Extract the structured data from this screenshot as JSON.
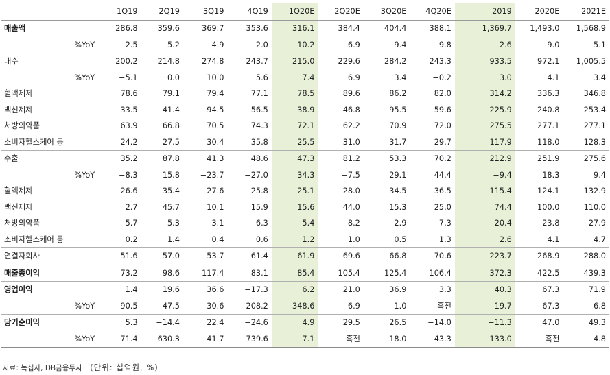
{
  "columns": [
    "1Q19",
    "2Q19",
    "3Q19",
    "4Q19",
    "1Q20E",
    "2Q20E",
    "3Q20E",
    "4Q20E",
    "2019",
    "2020E",
    "2021E"
  ],
  "rows": [
    {
      "label": "매출액",
      "bold": true,
      "pct": false,
      "sep": "none",
      "values": [
        "286.8",
        "359.6",
        "369.7",
        "353.6",
        "316.1",
        "384.4",
        "404.4",
        "388.1",
        "1,369.7",
        "1,493.0",
        "1,568.9"
      ]
    },
    {
      "label": "%YoY",
      "bold": false,
      "pct": true,
      "sep": "none",
      "values": [
        "−2.5",
        "5.2",
        "4.9",
        "2.0",
        "10.2",
        "6.9",
        "9.4",
        "9.8",
        "2.6",
        "9.0",
        "5.1"
      ]
    },
    {
      "label": "내수",
      "bold": false,
      "pct": false,
      "sep": "line",
      "values": [
        "200.2",
        "214.8",
        "274.8",
        "243.7",
        "215.0",
        "229.6",
        "284.2",
        "243.3",
        "933.5",
        "972.1",
        "1,005.5"
      ]
    },
    {
      "label": "%YoY",
      "bold": false,
      "pct": true,
      "sep": "none",
      "values": [
        "−5.1",
        "0.0",
        "10.0",
        "5.6",
        "7.4",
        "6.9",
        "3.4",
        "−0.2",
        "3.0",
        "4.1",
        "3.4"
      ]
    },
    {
      "label": "혈액제제",
      "bold": false,
      "pct": false,
      "sep": "none",
      "values": [
        "78.6",
        "79.1",
        "79.4",
        "77.1",
        "78.5",
        "89.6",
        "86.2",
        "82.0",
        "314.2",
        "336.3",
        "346.8"
      ]
    },
    {
      "label": "백신제제",
      "bold": false,
      "pct": false,
      "sep": "none",
      "values": [
        "33.5",
        "41.4",
        "94.5",
        "56.5",
        "38.9",
        "46.8",
        "95.5",
        "59.6",
        "225.9",
        "240.8",
        "253.4"
      ]
    },
    {
      "label": "처방의약품",
      "bold": false,
      "pct": false,
      "sep": "none",
      "values": [
        "63.9",
        "66.8",
        "70.5",
        "74.3",
        "72.1",
        "62.2",
        "70.9",
        "72.0",
        "275.5",
        "277.1",
        "277.1"
      ]
    },
    {
      "label": "소비자헬스케어 등",
      "bold": false,
      "pct": false,
      "sep": "none",
      "values": [
        "24.2",
        "27.5",
        "30.4",
        "35.8",
        "25.5",
        "31.0",
        "31.7",
        "29.7",
        "117.9",
        "118.0",
        "128.3"
      ]
    },
    {
      "label": "수출",
      "bold": false,
      "pct": false,
      "sep": "line",
      "values": [
        "35.2",
        "87.8",
        "41.3",
        "48.6",
        "47.3",
        "81.2",
        "53.3",
        "70.2",
        "212.9",
        "251.9",
        "275.6"
      ]
    },
    {
      "label": "%YoY",
      "bold": false,
      "pct": true,
      "sep": "none",
      "values": [
        "−8.3",
        "15.8",
        "−23.7",
        "−27.0",
        "34.3",
        "−7.5",
        "29.1",
        "44.4",
        "−9.4",
        "18.3",
        "9.4"
      ]
    },
    {
      "label": "혈액제제",
      "bold": false,
      "pct": false,
      "sep": "none",
      "values": [
        "26.6",
        "35.4",
        "27.6",
        "25.8",
        "25.1",
        "28.0",
        "34.5",
        "36.5",
        "115.4",
        "124.1",
        "132.9"
      ]
    },
    {
      "label": "백신제제",
      "bold": false,
      "pct": false,
      "sep": "none",
      "values": [
        "2.7",
        "45.7",
        "10.1",
        "15.9",
        "15.6",
        "44.0",
        "15.3",
        "25.0",
        "74.4",
        "100.0",
        "110.0"
      ]
    },
    {
      "label": "처방의약품",
      "bold": false,
      "pct": false,
      "sep": "none",
      "values": [
        "5.7",
        "5.3",
        "3.1",
        "6.3",
        "5.4",
        "8.2",
        "2.9",
        "7.3",
        "20.4",
        "23.8",
        "27.9"
      ]
    },
    {
      "label": "소비자헬스케어 등",
      "bold": false,
      "pct": false,
      "sep": "none",
      "values": [
        "0.2",
        "1.4",
        "0.4",
        "0.6",
        "1.2",
        "1.0",
        "0.5",
        "1.3",
        "2.6",
        "4.1",
        "4.7"
      ]
    },
    {
      "label": "연결자회사",
      "bold": false,
      "pct": false,
      "sep": "line",
      "values": [
        "51.6",
        "57.0",
        "53.7",
        "61.4",
        "61.9",
        "69.6",
        "66.8",
        "70.6",
        "223.7",
        "268.9",
        "288.0"
      ]
    },
    {
      "label": "매출총이익",
      "bold": true,
      "pct": false,
      "sep": "thick",
      "values": [
        "73.2",
        "98.6",
        "117.4",
        "83.1",
        "85.4",
        "105.4",
        "125.4",
        "106.4",
        "372.3",
        "422.5",
        "439.3"
      ]
    },
    {
      "label": "영업이익",
      "bold": true,
      "pct": false,
      "sep": "line",
      "values": [
        "1.4",
        "19.6",
        "36.6",
        "−17.3",
        "6.2",
        "21.0",
        "36.9",
        "3.3",
        "40.3",
        "67.3",
        "71.9"
      ]
    },
    {
      "label": "%YoY",
      "bold": false,
      "pct": true,
      "sep": "none",
      "values": [
        "−90.5",
        "47.5",
        "30.6",
        "208.2",
        "348.6",
        "6.9",
        "1.0",
        "흑전",
        "−19.7",
        "67.3",
        "6.8"
      ]
    },
    {
      "label": "당기순이익",
      "bold": true,
      "pct": false,
      "sep": "line",
      "values": [
        "5.3",
        "−14.4",
        "22.4",
        "−24.6",
        "4.9",
        "29.5",
        "26.5",
        "−14.0",
        "−11.3",
        "47.0",
        "49.3"
      ]
    },
    {
      "label": "%YoY",
      "bold": false,
      "pct": true,
      "sep": "none",
      "values": [
        "−71.4",
        "−630.3",
        "41.7",
        "739.6",
        "−7.1",
        "흑전",
        "18.0",
        "−43.3",
        "−133.0",
        "흑전",
        "4.8"
      ]
    }
  ],
  "footer": {
    "source": "자료: 녹십자, DB금융투자",
    "unit": "(단위: 십억원, %)"
  }
}
